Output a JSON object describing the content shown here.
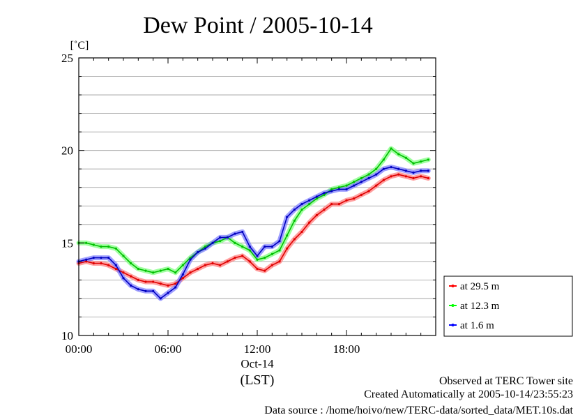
{
  "chart_data": {
    "type": "line",
    "title": "Dew Point / 2005-10-14",
    "ylabel": "[˚C]",
    "xlabel": "(LST)",
    "date_label": "Oct-14",
    "ylim": [
      10,
      25
    ],
    "xlim_hours": [
      0,
      24
    ],
    "y_ticks": [
      "10",
      "15",
      "20",
      "25"
    ],
    "y_tick_values": [
      10,
      15,
      20,
      25
    ],
    "x_ticks": [
      "00:00",
      "06:00",
      "12:00",
      "18:00"
    ],
    "x_tick_values": [
      0,
      6,
      12,
      18
    ],
    "grid": true,
    "legend_position": "right",
    "x": [
      0,
      0.5,
      1,
      1.5,
      2,
      2.5,
      3,
      3.5,
      4,
      4.5,
      5,
      5.5,
      6,
      6.5,
      7,
      7.5,
      8,
      8.5,
      9,
      9.5,
      10,
      10.5,
      11,
      11.5,
      12,
      12.5,
      13,
      13.5,
      14,
      14.5,
      15,
      15.5,
      16,
      16.5,
      17,
      17.5,
      18,
      18.5,
      19,
      19.5,
      20,
      20.5,
      21,
      21.5,
      22,
      22.5,
      23,
      23.5
    ],
    "series": [
      {
        "name": "at 29.5 m",
        "color": "#ff0000",
        "values": [
          13.9,
          14.0,
          13.9,
          13.9,
          13.8,
          13.6,
          13.4,
          13.2,
          13.0,
          12.9,
          12.9,
          12.8,
          12.7,
          12.8,
          13.1,
          13.4,
          13.6,
          13.8,
          13.9,
          13.8,
          14.0,
          14.2,
          14.3,
          14.0,
          13.6,
          13.5,
          13.8,
          14.0,
          14.7,
          15.2,
          15.6,
          16.1,
          16.5,
          16.8,
          17.1,
          17.1,
          17.3,
          17.4,
          17.6,
          17.8,
          18.1,
          18.4,
          18.6,
          18.7,
          18.6,
          18.5,
          18.6,
          18.5
        ]
      },
      {
        "name": "at 12.3 m",
        "color": "#00ff00",
        "values": [
          15.0,
          15.0,
          14.9,
          14.8,
          14.8,
          14.7,
          14.3,
          13.9,
          13.6,
          13.5,
          13.4,
          13.5,
          13.6,
          13.4,
          13.8,
          14.2,
          14.5,
          14.8,
          15.0,
          15.1,
          15.3,
          15.0,
          14.8,
          14.6,
          14.1,
          14.2,
          14.4,
          14.6,
          15.4,
          16.2,
          16.8,
          17.1,
          17.4,
          17.6,
          17.9,
          18.0,
          18.1,
          18.3,
          18.5,
          18.7,
          19.0,
          19.5,
          20.1,
          19.8,
          19.6,
          19.3,
          19.4,
          19.5
        ]
      },
      {
        "name": "at 1.6 m",
        "color": "#0000ff",
        "values": [
          14.0,
          14.1,
          14.2,
          14.2,
          14.2,
          13.8,
          13.1,
          12.7,
          12.5,
          12.4,
          12.4,
          12.0,
          12.3,
          12.6,
          13.3,
          14.1,
          14.5,
          14.7,
          15.0,
          15.3,
          15.3,
          15.5,
          15.6,
          14.8,
          14.3,
          14.8,
          14.8,
          15.1,
          16.4,
          16.8,
          17.1,
          17.3,
          17.5,
          17.7,
          17.8,
          17.9,
          17.9,
          18.1,
          18.3,
          18.5,
          18.7,
          19.0,
          19.1,
          19.0,
          18.9,
          18.8,
          18.9,
          18.9
        ]
      }
    ]
  },
  "footer": {
    "line1": "Observed at TERC Tower site",
    "line2": "Created Automatically at 2005-10-14/23:55:23",
    "line3": "Data source : /home/hoivo/new/TERC-data/sorted_data/MET.10s.dat"
  }
}
